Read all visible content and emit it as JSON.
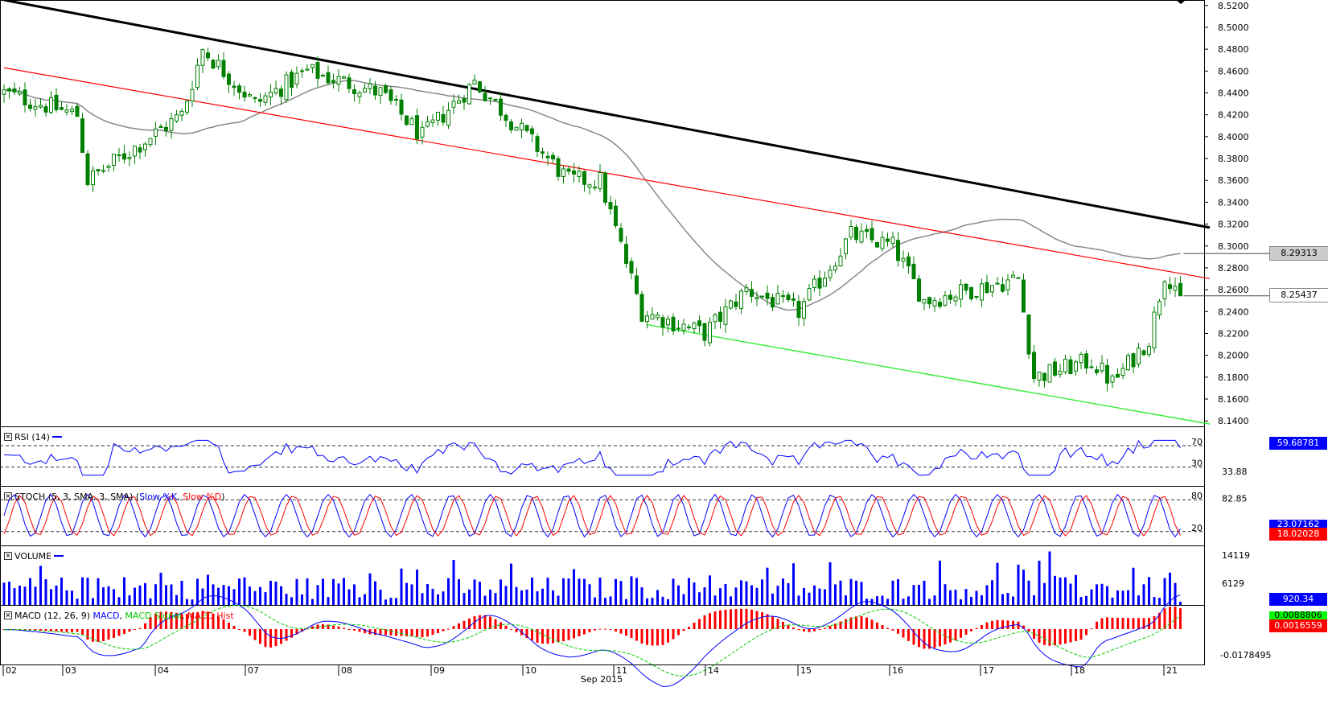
{
  "panels": {
    "rsi": {
      "label": "RSI (14)",
      "levels": [
        "70",
        "30"
      ],
      "current_value": "59.68781",
      "scale_label": "33.88"
    },
    "stoch": {
      "label": "STOCH (5, 3, SMA, 3, SMA)",
      "slow_k": "Slow %K",
      "slow_d": "Slow %D",
      "levels": [
        "80",
        "20"
      ],
      "value_k": "23.07162",
      "value_d": "18.02028",
      "scale_label": "82.85"
    },
    "volume": {
      "label": "VOLUME",
      "scale_labels": [
        "14119",
        "6129"
      ],
      "current_value": "920.34"
    },
    "macd": {
      "label": "MACD (12, 26, 9)",
      "macd": "MACD",
      "signal": "MACD Signal",
      "hist": "MACD Hist",
      "values": [
        "0.0088806",
        "0.0016559"
      ],
      "scale_label": "-0.0178495"
    }
  },
  "main": {
    "price_labels": [
      "8.5200",
      "8.5000",
      "8.4800",
      "8.4600",
      "8.4400",
      "8.4200",
      "8.4000",
      "8.3800",
      "8.3600",
      "8.3400",
      "8.3200",
      "8.3000",
      "8.2800",
      "8.2600",
      "8.2400",
      "8.2200",
      "8.2000",
      "8.1800",
      "8.1600",
      "8.1400"
    ],
    "ma_value": "8.29313",
    "last_price": "8.25437"
  },
  "xaxis": {
    "day_labels": [
      "02",
      "03",
      "04",
      "07",
      "08",
      "09",
      "10",
      "11",
      "14",
      "15",
      "16",
      "17",
      "18",
      "21"
    ],
    "month_label": "Sep 2015"
  },
  "colors": {
    "bg": "#ffffff",
    "candle": "#008000",
    "trend_black": "#000000",
    "trend_red": "#ff0000",
    "trend_green": "#33ee33",
    "ma": "#888888",
    "rsi": "#0000ff",
    "stoch_k": "#0000ff",
    "stoch_d": "#ff0000",
    "volume": "#0000ff",
    "macd": "#0000ff",
    "macd_signal": "#00cc00",
    "macd_hist": "#ff0000",
    "tag_blue": "#0000ff",
    "tag_red": "#ff0000",
    "tag_green": "#00ff00"
  },
  "chart_data": {
    "type": "candlestick",
    "symbol_note": "",
    "ylim": [
      8.135,
      8.525
    ],
    "segments": [
      {
        "from": 0,
        "to": 14,
        "start": 8.44,
        "end": 8.42
      },
      {
        "from": 14,
        "to": 16,
        "start": 8.42,
        "end": 8.36
      },
      {
        "from": 16,
        "to": 34,
        "start": 8.36,
        "end": 8.42
      },
      {
        "from": 34,
        "to": 38,
        "start": 8.42,
        "end": 8.48
      },
      {
        "from": 38,
        "to": 48,
        "start": 8.48,
        "end": 8.43
      },
      {
        "from": 48,
        "to": 58,
        "start": 8.43,
        "end": 8.46
      },
      {
        "from": 58,
        "to": 72,
        "start": 8.46,
        "end": 8.44
      },
      {
        "from": 72,
        "to": 80,
        "start": 8.44,
        "end": 8.4
      },
      {
        "from": 80,
        "to": 90,
        "start": 8.4,
        "end": 8.45
      },
      {
        "from": 90,
        "to": 100,
        "start": 8.45,
        "end": 8.4
      },
      {
        "from": 100,
        "to": 108,
        "start": 8.4,
        "end": 8.36
      },
      {
        "from": 108,
        "to": 114,
        "start": 8.36,
        "end": 8.36
      },
      {
        "from": 114,
        "to": 122,
        "start": 8.36,
        "end": 8.24
      },
      {
        "from": 122,
        "to": 134,
        "start": 8.24,
        "end": 8.22
      },
      {
        "from": 134,
        "to": 142,
        "start": 8.22,
        "end": 8.26
      },
      {
        "from": 142,
        "to": 152,
        "start": 8.26,
        "end": 8.24
      },
      {
        "from": 152,
        "to": 162,
        "start": 8.24,
        "end": 8.31
      },
      {
        "from": 162,
        "to": 170,
        "start": 8.31,
        "end": 8.3
      },
      {
        "from": 170,
        "to": 176,
        "start": 8.3,
        "end": 8.25
      },
      {
        "from": 176,
        "to": 194,
        "start": 8.25,
        "end": 8.27
      },
      {
        "from": 194,
        "to": 197,
        "start": 8.27,
        "end": 8.18
      },
      {
        "from": 197,
        "to": 208,
        "start": 8.18,
        "end": 8.195
      },
      {
        "from": 208,
        "to": 212,
        "start": 8.195,
        "end": 8.175
      },
      {
        "from": 212,
        "to": 219,
        "start": 8.175,
        "end": 8.215
      },
      {
        "from": 219,
        "to": 222,
        "start": 8.215,
        "end": 8.275
      },
      {
        "from": 222,
        "to": 226,
        "start": 8.275,
        "end": 8.254
      }
    ],
    "candle_count": 226,
    "trendlines": [
      {
        "name": "",
        "color": "black",
        "points": [
          [
            0,
            8.525
          ],
          [
            226,
            8.321
          ]
        ]
      },
      {
        "name": "",
        "color": "red",
        "points": [
          [
            0,
            8.463
          ],
          [
            226,
            8.274
          ]
        ]
      },
      {
        "name": "",
        "color": "green",
        "points": [
          [
            123,
            8.228
          ],
          [
            226,
            8.141
          ]
        ]
      }
    ],
    "moving_average_last": 8.29313,
    "last_close": 8.25437,
    "x_ticks": [
      "02",
      "03",
      "04",
      "07",
      "08",
      "09",
      "10",
      "11",
      "14",
      "15",
      "16",
      "17",
      "18",
      "21"
    ],
    "x_label": "Sep 2015",
    "grid": false
  }
}
